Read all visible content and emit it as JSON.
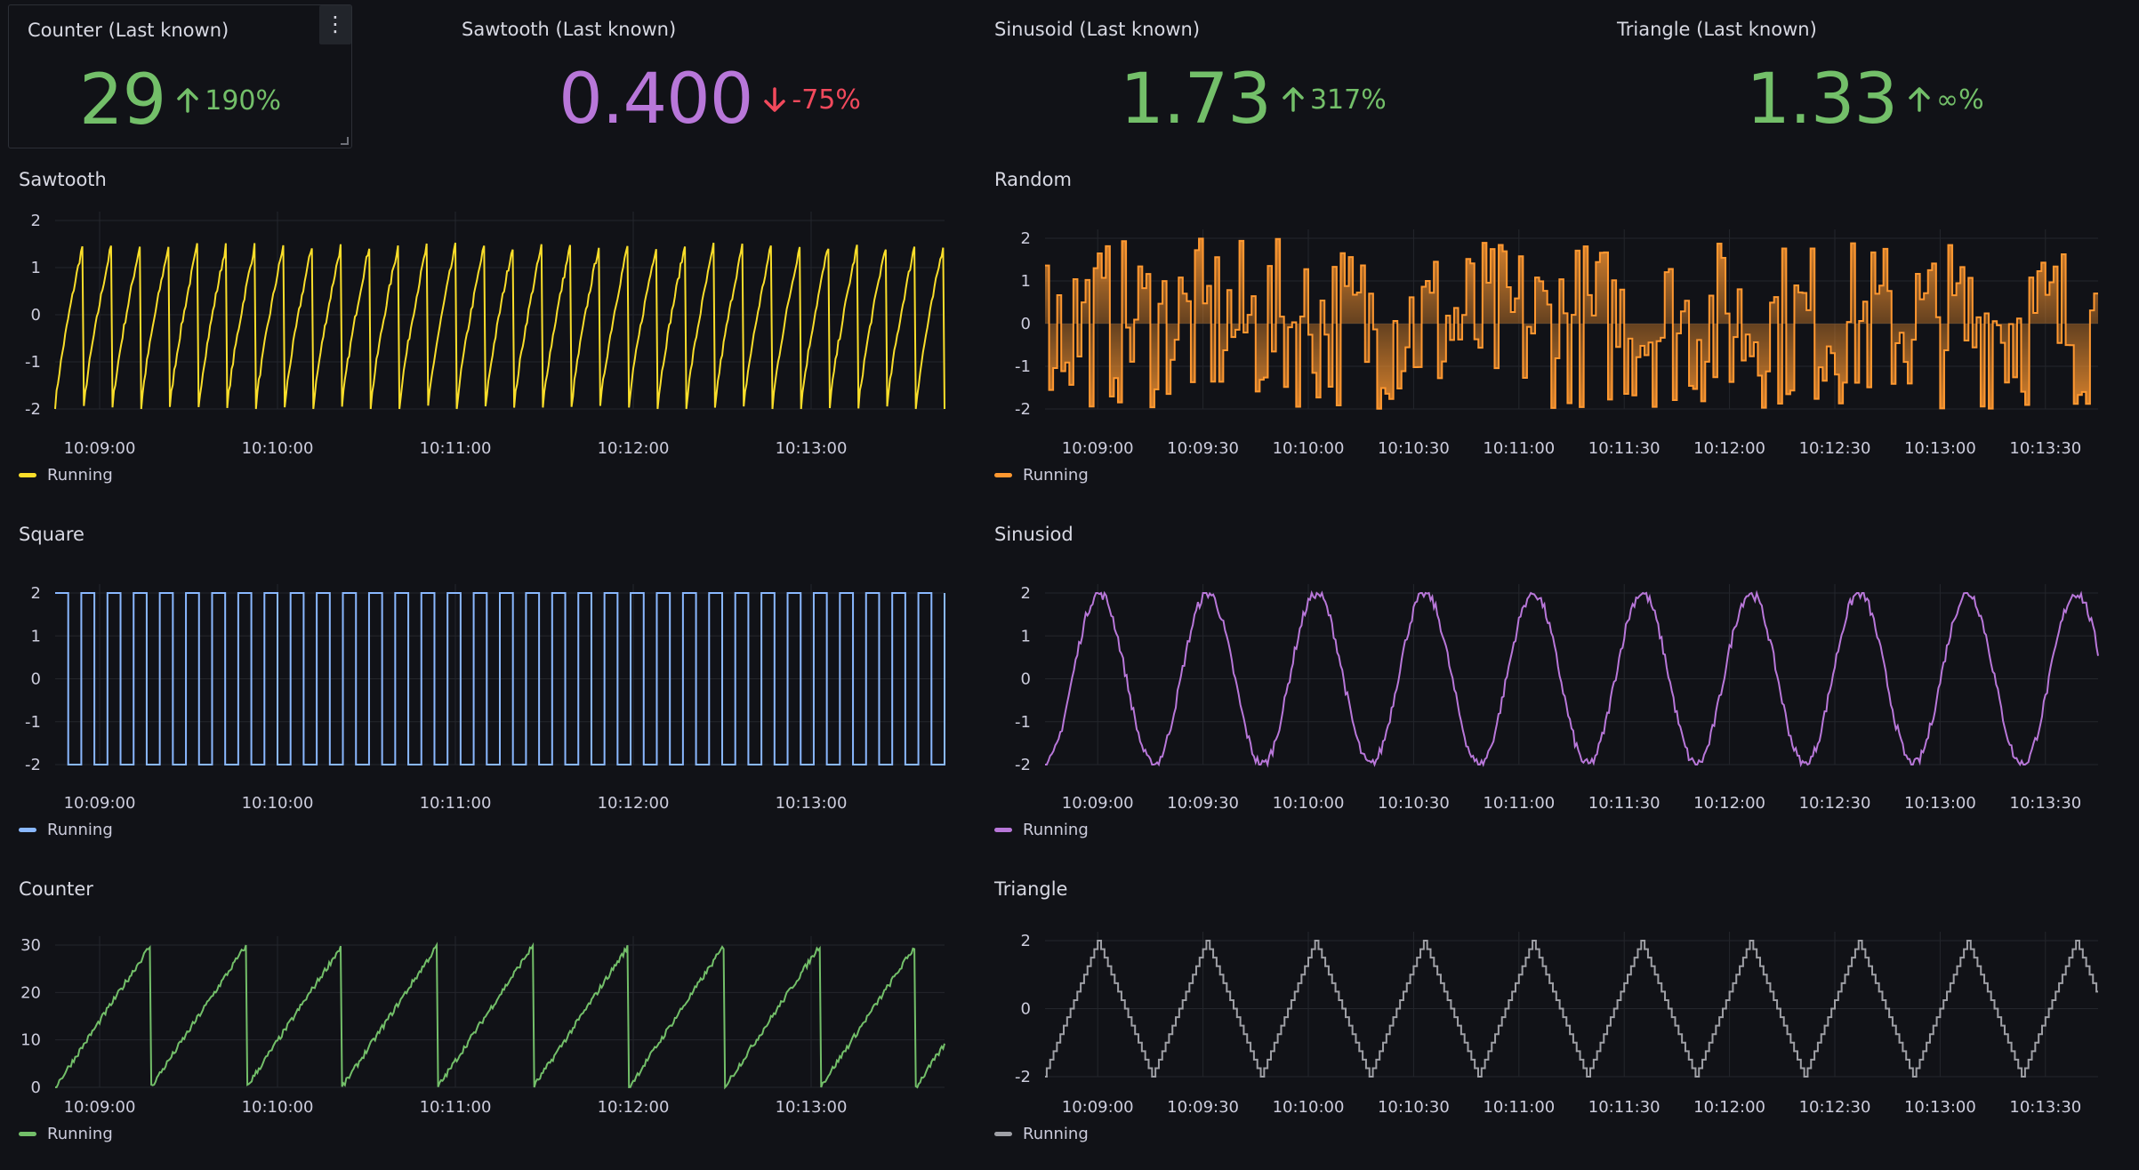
{
  "stats": [
    {
      "title": "Counter (Last known)",
      "value": "29",
      "delta": "190%",
      "direction": "up",
      "color": "#73bf69",
      "deltaColor": "#73bf69"
    },
    {
      "title": "Sawtooth (Last known)",
      "value": "0.400",
      "delta": "-75%",
      "direction": "down",
      "color": "#b877d9",
      "deltaColor": "#f2495c"
    },
    {
      "title": "Sinusoid (Last known)",
      "value": "1.73",
      "delta": "317%",
      "direction": "up",
      "color": "#73bf69",
      "deltaColor": "#73bf69"
    },
    {
      "title": "Triangle (Last known)",
      "value": "1.33",
      "delta": "∞%",
      "direction": "up",
      "color": "#73bf69",
      "deltaColor": "#73bf69"
    }
  ],
  "panel_menu_icon": "⋮",
  "panels": {
    "sawtooth": {
      "title": "Sawtooth",
      "legend": "Running",
      "color": "#fade2a"
    },
    "random": {
      "title": "Random",
      "legend": "Running",
      "color": "#ff9830"
    },
    "square": {
      "title": "Square",
      "legend": "Running",
      "color": "#8ab8ff"
    },
    "sinusoid": {
      "title": "Sinusiod",
      "legend": "Running",
      "color": "#b877d9"
    },
    "counter": {
      "title": "Counter",
      "legend": "Running",
      "color": "#73bf69"
    },
    "triangle": {
      "title": "Triangle",
      "legend": "Running",
      "color": "#9fa0a6"
    }
  },
  "chart_data": [
    {
      "id": "sawtooth",
      "type": "line",
      "title": "Sawtooth",
      "ylim": [
        -2,
        2
      ],
      "yticks": [
        2,
        1,
        0,
        -1,
        -2
      ],
      "xticks": [
        "10:09:00",
        "10:10:00",
        "10:11:00",
        "10:12:00",
        "10:13:00"
      ],
      "xrange": [
        "10:08:45",
        "10:13:45"
      ],
      "series": [
        {
          "name": "Running",
          "shape": "sawtooth",
          "periods": 31
        }
      ]
    },
    {
      "id": "random",
      "type": "area",
      "title": "Random",
      "ylim": [
        -2,
        2
      ],
      "yticks": [
        2,
        1,
        0,
        -1,
        -2
      ],
      "xticks": [
        "10:09:00",
        "10:09:30",
        "10:10:00",
        "10:10:30",
        "10:11:00",
        "10:11:30",
        "10:12:00",
        "10:12:30",
        "10:13:00",
        "10:13:30"
      ],
      "xrange": [
        "10:08:45",
        "10:13:45"
      ],
      "series": [
        {
          "name": "Running",
          "shape": "random-step"
        }
      ]
    },
    {
      "id": "square",
      "type": "line",
      "title": "Square",
      "ylim": [
        -2,
        2
      ],
      "yticks": [
        2,
        1,
        0,
        -1,
        -2
      ],
      "xticks": [
        "10:09:00",
        "10:10:00",
        "10:11:00",
        "10:12:00",
        "10:13:00"
      ],
      "xrange": [
        "10:08:45",
        "10:13:45"
      ],
      "series": [
        {
          "name": "Running",
          "shape": "square",
          "periods": 34
        }
      ]
    },
    {
      "id": "sinusoid",
      "type": "line",
      "title": "Sinusiod",
      "ylim": [
        -2,
        2
      ],
      "yticks": [
        2,
        1,
        0,
        -1,
        -2
      ],
      "xticks": [
        "10:09:00",
        "10:09:30",
        "10:10:00",
        "10:10:30",
        "10:11:00",
        "10:11:30",
        "10:12:00",
        "10:12:30",
        "10:13:00",
        "10:13:30"
      ],
      "xrange": [
        "10:08:45",
        "10:13:45"
      ],
      "series": [
        {
          "name": "Running",
          "shape": "sinusoid",
          "periods": 9.7
        }
      ]
    },
    {
      "id": "counter",
      "type": "line",
      "title": "Counter",
      "ylim": [
        0,
        30
      ],
      "yticks": [
        30,
        20,
        10,
        0
      ],
      "xticks": [
        "10:09:00",
        "10:10:00",
        "10:11:00",
        "10:12:00",
        "10:13:00"
      ],
      "xrange": [
        "10:08:45",
        "10:13:45"
      ],
      "series": [
        {
          "name": "Running",
          "shape": "counter",
          "periods": 9.3
        }
      ]
    },
    {
      "id": "triangle",
      "type": "line",
      "title": "Triangle",
      "ylim": [
        -2,
        2
      ],
      "yticks": [
        2,
        0,
        -2
      ],
      "xticks": [
        "10:09:00",
        "10:09:30",
        "10:10:00",
        "10:10:30",
        "10:11:00",
        "10:11:30",
        "10:12:00",
        "10:12:30",
        "10:13:00",
        "10:13:30"
      ],
      "xrange": [
        "10:08:45",
        "10:13:45"
      ],
      "series": [
        {
          "name": "Running",
          "shape": "triangle-step",
          "periods": 9.7
        }
      ]
    }
  ]
}
